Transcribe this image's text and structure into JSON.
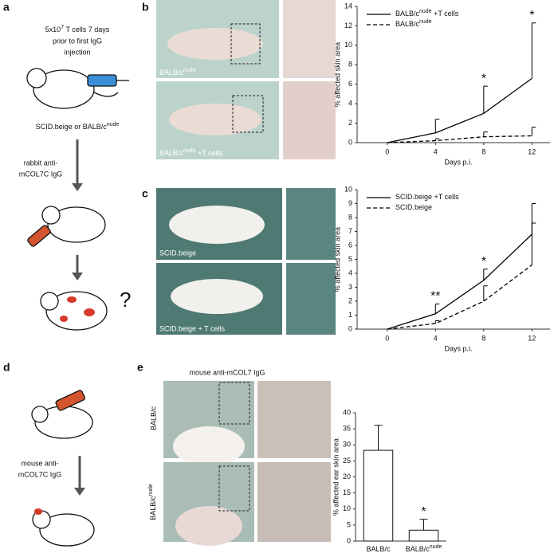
{
  "panels": {
    "a": {
      "label": "a",
      "text1a": "5x10",
      "text1sup": "7",
      "text1b": " T cells 7 days",
      "text2": "prior to first IgG",
      "text3": "injection",
      "mouse_a": "SCID.beige or BALB/c",
      "mouse_sup": "nude",
      "step1": "rabbit anti-",
      "step2": "mCOL7C IgG",
      "question": "?"
    },
    "b": {
      "label": "b",
      "photo1": "BALB/c",
      "photo1_sup": "nude",
      "photo2": "BALB/c",
      "photo2_sup": "nude",
      "photo2_suffix": " +T cells"
    },
    "c": {
      "label": "c",
      "photo1": "SCID.beige",
      "photo2": "SCID.beige + T cells"
    },
    "d": {
      "label": "d",
      "step1": "mouse anti-",
      "step2": "mCOL7C IgG"
    },
    "e": {
      "label": "e",
      "title": "mouse anti-mCOL7 IgG",
      "row1": "BALB/c",
      "row2": "BALB/c",
      "row2_sup": "nude"
    }
  },
  "chart_data": [
    {
      "type": "line",
      "x_label": "Days p.i.",
      "y_label": "% affected skin area",
      "x": [
        0,
        4,
        8,
        12
      ],
      "xlim": [
        -2.5,
        13.5
      ],
      "xticks": [
        0,
        4,
        8,
        12
      ],
      "ylim": [
        0,
        14
      ],
      "yticks": [
        0,
        2,
        4,
        6,
        8,
        10,
        12,
        14
      ],
      "legend": "upper left",
      "series": [
        {
          "name": "BALB/c",
          "name_sup": "nude",
          "name_suffix": " +T cells",
          "color": "#000000",
          "linestyle": "solid",
          "values": [
            0,
            1.0,
            3.0,
            6.6
          ],
          "errors": [
            null,
            1.4,
            2.8,
            5.7
          ]
        },
        {
          "name": "BALB/c",
          "name_sup": "nude",
          "color": "#000000",
          "linestyle": "dashed",
          "values": [
            0,
            0.2,
            0.6,
            0.7
          ],
          "errors": [
            null,
            0.2,
            0.5,
            0.9
          ]
        }
      ],
      "annotations": [
        {
          "text": "*",
          "x": 8
        },
        {
          "text": "*",
          "x": 12
        }
      ]
    },
    {
      "type": "line",
      "x_label": "Days p.i.",
      "y_label": "% affected skin area",
      "x": [
        0,
        4,
        8,
        12
      ],
      "xlim": [
        -2.5,
        13.5
      ],
      "xticks": [
        0,
        4,
        8,
        12
      ],
      "ylim": [
        0,
        10
      ],
      "yticks": [
        0,
        1,
        2,
        3,
        4,
        5,
        6,
        7,
        8,
        9,
        10
      ],
      "legend": "upper left",
      "series": [
        {
          "name": "SCID.beige +T cells",
          "color": "#000000",
          "linestyle": "solid",
          "values": [
            0,
            1.1,
            3.5,
            6.8
          ],
          "errors": [
            null,
            0.7,
            0.8,
            2.2
          ]
        },
        {
          "name": "SCID.beige",
          "color": "#000000",
          "linestyle": "dashed",
          "values": [
            0,
            0.4,
            2.0,
            4.6
          ],
          "errors": [
            null,
            0.2,
            1.1,
            3.0
          ]
        }
      ],
      "annotations": [
        {
          "text": "**",
          "x": 4
        },
        {
          "text": "*",
          "x": 8
        }
      ]
    },
    {
      "type": "bar",
      "y_label": "% affected ear skin area",
      "categories": [
        "BALB/c",
        "BALB/c"
      ],
      "category_sups": [
        null,
        "nude"
      ],
      "values": [
        28.3,
        3.4
      ],
      "errors": [
        7.8,
        3.4
      ],
      "color": "#ffffff",
      "ylim": [
        0,
        40
      ],
      "yticks": [
        0,
        5,
        10,
        15,
        20,
        25,
        30,
        35,
        40
      ],
      "annotations": [
        {
          "text": "*",
          "index": 1
        }
      ]
    }
  ]
}
